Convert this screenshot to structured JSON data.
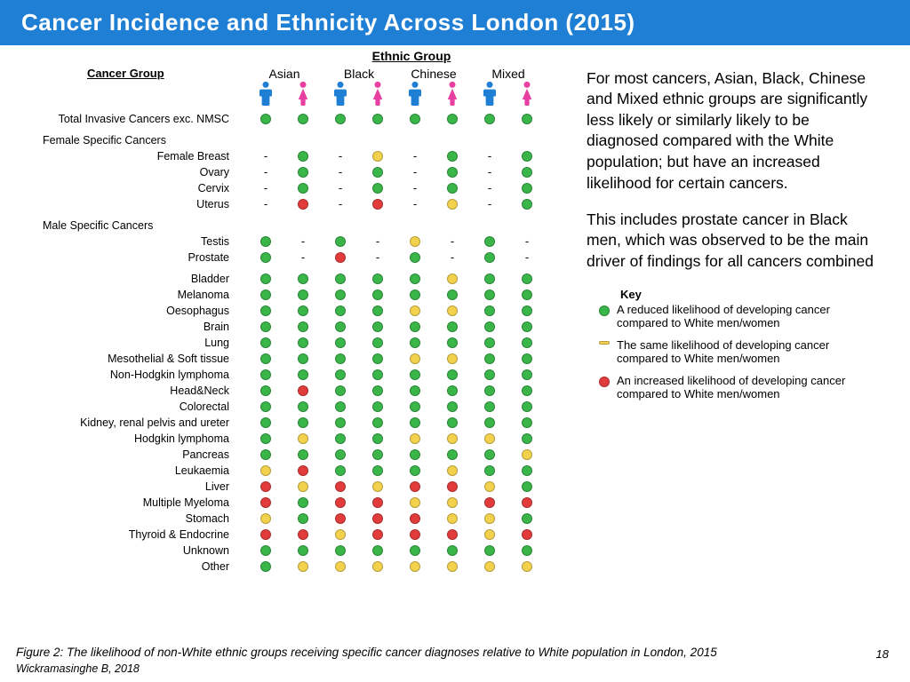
{
  "title": "Cancer Incidence and Ethnicity Across London (2015)",
  "ethnic_header": "Ethnic Group",
  "cancer_group_label": "Cancer Group",
  "ethnic_groups": [
    "Asian",
    "Black",
    "Chinese",
    "Mixed"
  ],
  "icon_colors": {
    "male": "#1f7fd4",
    "female": "#e83fa0"
  },
  "dot_colors": {
    "g": "#39b54a",
    "y": "#f2d24c",
    "r": "#e23b3b"
  },
  "rows": [
    {
      "label": "Total Invasive Cancers exc. NMSC",
      "type": "data",
      "cells": [
        "g",
        "g",
        "g",
        "g",
        "g",
        "g",
        "g",
        "g"
      ]
    },
    {
      "type": "spacer"
    },
    {
      "label": "Female Specific Cancers",
      "type": "section"
    },
    {
      "label": "Female Breast",
      "type": "data",
      "cells": [
        "-",
        "g",
        "-",
        "y",
        "-",
        "g",
        "-",
        "g"
      ]
    },
    {
      "label": "Ovary",
      "type": "data",
      "cells": [
        "-",
        "g",
        "-",
        "g",
        "-",
        "g",
        "-",
        "g"
      ]
    },
    {
      "label": "Cervix",
      "type": "data",
      "cells": [
        "-",
        "g",
        "-",
        "g",
        "-",
        "g",
        "-",
        "g"
      ]
    },
    {
      "label": "Uterus",
      "type": "data",
      "cells": [
        "-",
        "r",
        "-",
        "r",
        "-",
        "y",
        "-",
        "g"
      ]
    },
    {
      "type": "spacer"
    },
    {
      "label": "Male Specific Cancers",
      "type": "section"
    },
    {
      "label": "Testis",
      "type": "data",
      "cells": [
        "g",
        "-",
        "g",
        "-",
        "y",
        "-",
        "g",
        "-"
      ]
    },
    {
      "label": "Prostate",
      "type": "data",
      "cells": [
        "g",
        "-",
        "r",
        "-",
        "g",
        "-",
        "g",
        "-"
      ]
    },
    {
      "type": "spacer"
    },
    {
      "label": "Bladder",
      "type": "data",
      "cells": [
        "g",
        "g",
        "g",
        "g",
        "g",
        "y",
        "g",
        "g"
      ]
    },
    {
      "label": "Melanoma",
      "type": "data",
      "cells": [
        "g",
        "g",
        "g",
        "g",
        "g",
        "g",
        "g",
        "g"
      ]
    },
    {
      "label": "Oesophagus",
      "type": "data",
      "cells": [
        "g",
        "g",
        "g",
        "g",
        "y",
        "y",
        "g",
        "g"
      ]
    },
    {
      "label": "Brain",
      "type": "data",
      "cells": [
        "g",
        "g",
        "g",
        "g",
        "g",
        "g",
        "g",
        "g"
      ]
    },
    {
      "label": "Lung",
      "type": "data",
      "cells": [
        "g",
        "g",
        "g",
        "g",
        "g",
        "g",
        "g",
        "g"
      ]
    },
    {
      "label": "Mesothelial & Soft tissue",
      "type": "data",
      "cells": [
        "g",
        "g",
        "g",
        "g",
        "y",
        "y",
        "g",
        "g"
      ]
    },
    {
      "label": "Non-Hodgkin lymphoma",
      "type": "data",
      "cells": [
        "g",
        "g",
        "g",
        "g",
        "g",
        "g",
        "g",
        "g"
      ]
    },
    {
      "label": "Head&Neck",
      "type": "data",
      "cells": [
        "g",
        "r",
        "g",
        "g",
        "g",
        "g",
        "g",
        "g"
      ]
    },
    {
      "label": "Colorectal",
      "type": "data",
      "cells": [
        "g",
        "g",
        "g",
        "g",
        "g",
        "g",
        "g",
        "g"
      ]
    },
    {
      "label": "Kidney, renal pelvis and ureter",
      "type": "data",
      "cells": [
        "g",
        "g",
        "g",
        "g",
        "g",
        "g",
        "g",
        "g"
      ]
    },
    {
      "label": "Hodgkin lymphoma",
      "type": "data",
      "cells": [
        "g",
        "y",
        "g",
        "g",
        "y",
        "y",
        "y",
        "g"
      ]
    },
    {
      "label": "Pancreas",
      "type": "data",
      "cells": [
        "g",
        "g",
        "g",
        "g",
        "g",
        "g",
        "g",
        "y"
      ]
    },
    {
      "label": "Leukaemia",
      "type": "data",
      "cells": [
        "y",
        "r",
        "g",
        "g",
        "g",
        "y",
        "g",
        "g"
      ]
    },
    {
      "label": "Liver",
      "type": "data",
      "cells": [
        "r",
        "y",
        "r",
        "y",
        "r",
        "r",
        "y",
        "g"
      ]
    },
    {
      "label": "Multiple Myeloma",
      "type": "data",
      "cells": [
        "r",
        "g",
        "r",
        "r",
        "y",
        "y",
        "r",
        "r"
      ]
    },
    {
      "label": "Stomach",
      "type": "data",
      "cells": [
        "y",
        "g",
        "r",
        "r",
        "r",
        "y",
        "y",
        "g"
      ]
    },
    {
      "label": "Thyroid & Endocrine",
      "type": "data",
      "cells": [
        "r",
        "r",
        "y",
        "r",
        "r",
        "r",
        "y",
        "r"
      ]
    },
    {
      "label": "Unknown",
      "type": "data",
      "cells": [
        "g",
        "g",
        "g",
        "g",
        "g",
        "g",
        "g",
        "g"
      ]
    },
    {
      "label": "Other",
      "type": "data",
      "cells": [
        "g",
        "y",
        "y",
        "y",
        "y",
        "y",
        "y",
        "y"
      ]
    }
  ],
  "summary_p1": "For most cancers, Asian, Black, Chinese and Mixed ethnic groups are significantly less likely or similarly likely to be diagnosed compared with the White population; but have an increased likelihood for certain cancers.",
  "summary_p2": "This includes prostate cancer in Black men, which was observed to be the main driver of findings for all cancers combined",
  "key": {
    "title": "Key",
    "reduced": "A reduced likelihood of developing cancer compared to White men/women",
    "same": "The same likelihood of developing cancer compared to White men/women",
    "increased": "An increased likelihood of developing cancer compared to White men/women"
  },
  "caption": "Figure 2: The likelihood of non-White ethnic groups receiving specific cancer diagnoses relative to White population in London, 2015",
  "source": "Wickramasinghe B, 2018",
  "page_num": "18"
}
